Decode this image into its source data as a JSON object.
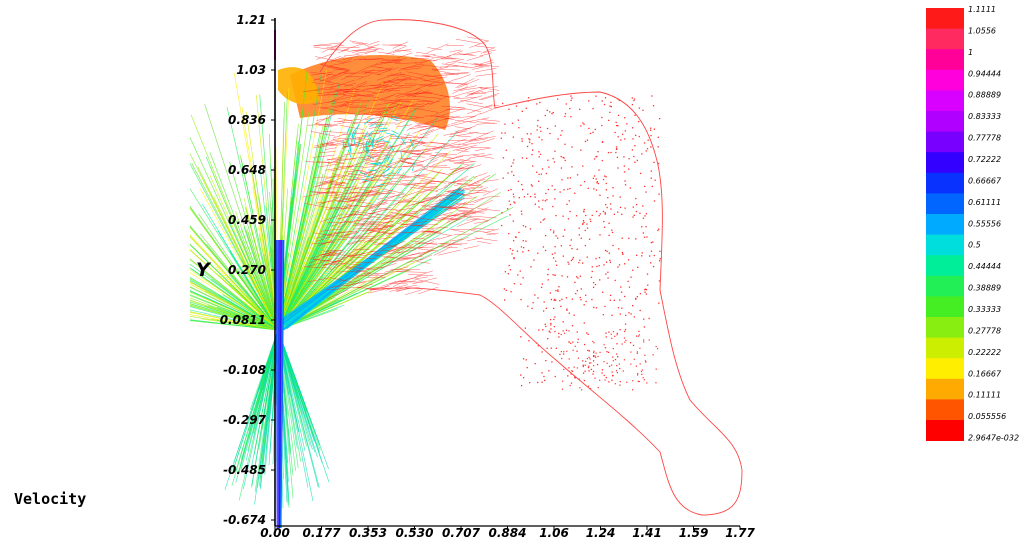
{
  "title": "Velocity",
  "chart_data": {
    "type": "vector-field",
    "title": "Velocity",
    "ylabel": "Y",
    "xlabel": "",
    "xlim": [
      0,
      1.77
    ],
    "ylim": [
      -0.674,
      1.21
    ],
    "x_ticks": [
      "0.00",
      "0.177",
      "0.353",
      "0.530",
      "0.707",
      "0.884",
      "1.06",
      "1.24",
      "1.41",
      "1.59",
      "1.77"
    ],
    "y_ticks": [
      "1.21",
      "1.03",
      "0.836",
      "0.648",
      "0.459",
      "0.270",
      "0.0811",
      "-0.108",
      "-0.297",
      "-0.485",
      "-0.674"
    ],
    "colorbar": {
      "position": "right",
      "labels": [
        "1.1111",
        "1.0556",
        "1",
        "0.94444",
        "0.88889",
        "0.83333",
        "0.77778",
        "0.72222",
        "0.66667",
        "0.61111",
        "0.55556",
        "0.5",
        "0.44444",
        "0.38889",
        "0.33333",
        "0.27778",
        "0.22222",
        "0.16667",
        "0.11111",
        "0.055556",
        "2.9647e-032"
      ],
      "colors": [
        "#ff1a1a",
        "#ff2a60",
        "#ff0099",
        "#ff00dd",
        "#d800ff",
        "#b000ff",
        "#7700ff",
        "#3300ff",
        "#0a32ff",
        "#0066ff",
        "#00aaff",
        "#00dddd",
        "#00ee99",
        "#22ee55",
        "#44ee22",
        "#88ee11",
        "#ccee00",
        "#ffee00",
        "#ffaa00",
        "#ff5500",
        "#ff0000"
      ]
    }
  }
}
